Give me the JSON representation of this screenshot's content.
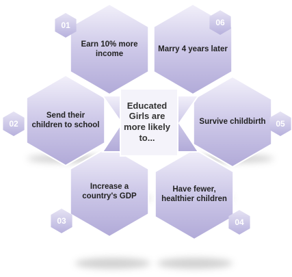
{
  "center": "Educated Girls are more likely to...",
  "items": [
    {
      "number": "01",
      "label": "Earn 10% more income"
    },
    {
      "number": "06",
      "label": "Marry 4 years later"
    },
    {
      "number": "02",
      "label": "Send their children to school"
    },
    {
      "number": "05",
      "label": "Survive childbirth"
    },
    {
      "number": "03",
      "label": "Increase a country's GDP"
    },
    {
      "number": "04",
      "label": "Have fewer, healthier children"
    }
  ]
}
